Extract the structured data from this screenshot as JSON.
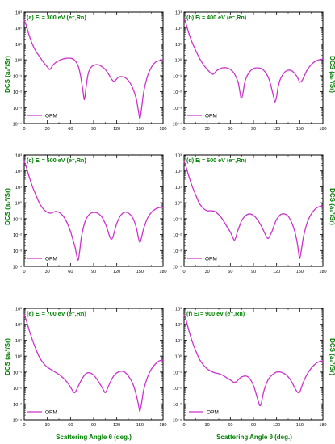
{
  "figure": {
    "ylabel": "DCS (a₀²/Sr)",
    "xlabel": "Scattering Angle θ (deg.)",
    "label_color": "#008000",
    "line_color": "#cc33cc",
    "axis_color": "#000000"
  },
  "chart_data": [
    {
      "type": "line",
      "title": "(a) Eᵢ = 300 eV (e⁻,Rn)",
      "legend": "OPM",
      "legend_position": "bottom-left",
      "xlim": [
        0,
        180
      ],
      "ylim_log10": [
        -4,
        3
      ],
      "xticks": [
        "0",
        "30",
        "60",
        "90",
        "120",
        "150",
        "180"
      ],
      "yticks": [
        "10⁻⁴",
        "10⁻³",
        "10⁻²",
        "10⁻¹",
        "10⁰",
        "10¹",
        "10²",
        "10³"
      ],
      "series": [
        {
          "x": [
            0,
            3,
            6,
            10,
            15,
            20,
            25,
            30,
            33,
            35,
            37,
            40,
            45,
            50,
            55,
            60,
            65,
            70,
            73,
            76,
            78,
            80,
            82,
            84,
            87,
            90,
            95,
            100,
            105,
            110,
            113,
            116,
            118,
            120,
            122,
            125,
            130,
            135,
            140,
            145,
            148,
            150,
            152,
            155,
            160,
            165,
            170,
            175,
            180
          ],
          "y": [
            2.5,
            2.1,
            1.6,
            1.05,
            0.55,
            0.2,
            -0.15,
            -0.45,
            -0.6,
            -0.5,
            -0.35,
            -0.2,
            -0.05,
            0.05,
            0.1,
            0.1,
            0.0,
            -0.4,
            -1.0,
            -1.9,
            -2.5,
            -1.8,
            -1.1,
            -0.7,
            -0.45,
            -0.35,
            -0.3,
            -0.4,
            -0.6,
            -0.95,
            -1.2,
            -1.35,
            -1.3,
            -1.2,
            -1.1,
            -1.05,
            -1.1,
            -1.3,
            -1.7,
            -2.4,
            -3.2,
            -3.7,
            -3.1,
            -2.0,
            -1.0,
            -0.45,
            -0.15,
            -0.05,
            0.0
          ]
        }
      ]
    },
    {
      "type": "line",
      "title": "(b) Eᵢ = 400 eV (e⁻,Rn)",
      "legend": "OPM",
      "legend_position": "bottom-left",
      "xlim": [
        0,
        180
      ],
      "ylim_log10": [
        -4,
        3
      ],
      "xticks": [
        "0",
        "30",
        "60",
        "90",
        "120",
        "150",
        "180"
      ],
      "yticks": [
        "10⁻⁴",
        "10⁻³",
        "10⁻²",
        "10⁻¹",
        "10⁰",
        "10¹",
        "10²",
        "10³"
      ],
      "series": [
        {
          "x": [
            0,
            3,
            6,
            10,
            15,
            20,
            25,
            30,
            35,
            38,
            40,
            43,
            47,
            50,
            55,
            60,
            65,
            70,
            72,
            74,
            76,
            78,
            80,
            85,
            90,
            95,
            100,
            105,
            110,
            113,
            116,
            118,
            120,
            122,
            125,
            130,
            135,
            140,
            145,
            148,
            150,
            153,
            156,
            160,
            165,
            170,
            175,
            180
          ],
          "y": [
            2.6,
            2.2,
            1.7,
            1.15,
            0.6,
            0.1,
            -0.3,
            -0.6,
            -0.85,
            -0.9,
            -0.8,
            -0.65,
            -0.55,
            -0.5,
            -0.5,
            -0.6,
            -0.85,
            -1.4,
            -1.9,
            -2.4,
            -2.2,
            -1.6,
            -1.2,
            -0.75,
            -0.55,
            -0.5,
            -0.55,
            -0.75,
            -1.2,
            -1.7,
            -2.3,
            -2.65,
            -2.3,
            -1.7,
            -1.2,
            -0.8,
            -0.65,
            -0.7,
            -0.95,
            -1.2,
            -1.4,
            -1.3,
            -1.0,
            -0.6,
            -0.3,
            -0.1,
            0.0,
            0.05
          ]
        }
      ]
    },
    {
      "type": "line",
      "title": "(c) Eᵢ = 500 eV (e⁻,Rn)",
      "legend": "OPM",
      "legend_position": "bottom-left",
      "xlim": [
        0,
        180
      ],
      "ylim_log10": [
        -4,
        3
      ],
      "xticks": [
        "0",
        "30",
        "60",
        "90",
        "120",
        "150",
        "180"
      ],
      "yticks": [
        "10⁻⁴",
        "10⁻³",
        "10⁻²",
        "10⁻¹",
        "10⁰",
        "10¹",
        "10²",
        "10³"
      ],
      "series": [
        {
          "x": [
            0,
            3,
            6,
            10,
            15,
            20,
            25,
            30,
            35,
            40,
            45,
            50,
            55,
            60,
            63,
            66,
            68,
            70,
            72,
            74,
            77,
            80,
            85,
            90,
            95,
            100,
            105,
            108,
            111,
            113,
            115,
            117,
            120,
            125,
            130,
            135,
            140,
            143,
            146,
            148,
            150,
            152,
            155,
            160,
            165,
            170,
            175,
            180
          ],
          "y": [
            2.6,
            2.2,
            1.7,
            1.1,
            0.5,
            -0.05,
            -0.4,
            -0.6,
            -0.65,
            -0.55,
            -0.6,
            -0.8,
            -1.2,
            -1.8,
            -2.3,
            -2.8,
            -3.3,
            -3.6,
            -3.0,
            -2.2,
            -1.5,
            -1.05,
            -0.7,
            -0.6,
            -0.65,
            -0.85,
            -1.3,
            -1.7,
            -2.15,
            -2.3,
            -2.15,
            -1.8,
            -1.3,
            -0.8,
            -0.6,
            -0.65,
            -0.9,
            -1.2,
            -1.7,
            -2.2,
            -2.5,
            -2.2,
            -1.6,
            -0.95,
            -0.6,
            -0.4,
            -0.3,
            -0.3
          ]
        }
      ]
    },
    {
      "type": "line",
      "title": "(d) Eᵢ = 600 eV (e⁻,Rn)",
      "legend": "OPM",
      "legend_position": "bottom-left",
      "xlim": [
        0,
        180
      ],
      "ylim_log10": [
        -4,
        3
      ],
      "xticks": [
        "0",
        "30",
        "60",
        "90",
        "120",
        "150",
        "180"
      ],
      "yticks": [
        "10⁻⁴",
        "10⁻³",
        "10⁻²",
        "10⁻¹",
        "10⁰",
        "10¹",
        "10²",
        "10³"
      ],
      "series": [
        {
          "x": [
            0,
            3,
            6,
            10,
            15,
            20,
            25,
            30,
            35,
            40,
            45,
            50,
            55,
            60,
            63,
            65,
            67,
            69,
            72,
            75,
            80,
            85,
            90,
            95,
            100,
            104,
            107,
            109,
            111,
            114,
            117,
            120,
            125,
            130,
            135,
            140,
            144,
            147,
            149,
            150,
            152,
            155,
            160,
            165,
            170,
            175,
            180
          ],
          "y": [
            2.6,
            2.2,
            1.7,
            1.1,
            0.5,
            -0.05,
            -0.35,
            -0.5,
            -0.5,
            -0.55,
            -0.75,
            -1.05,
            -1.45,
            -1.85,
            -2.15,
            -2.35,
            -2.2,
            -1.85,
            -1.45,
            -1.1,
            -0.8,
            -0.7,
            -0.8,
            -1.05,
            -1.45,
            -1.85,
            -2.15,
            -2.25,
            -2.1,
            -1.8,
            -1.4,
            -1.05,
            -0.75,
            -0.7,
            -0.85,
            -1.3,
            -1.9,
            -2.6,
            -3.3,
            -3.5,
            -3.0,
            -2.1,
            -1.2,
            -0.7,
            -0.4,
            -0.25,
            -0.2
          ]
        }
      ]
    },
    {
      "type": "line",
      "title": "(e) Eᵢ = 700 eV (e⁻,Rn)",
      "legend": "OPM",
      "legend_position": "bottom-left",
      "xlim": [
        0,
        180
      ],
      "ylim_log10": [
        -4,
        3
      ],
      "xticks": [
        "0",
        "30",
        "60",
        "90",
        "120",
        "150",
        "180"
      ],
      "yticks": [
        "10⁻⁴",
        "10⁻³",
        "10⁻²",
        "10⁻¹",
        "10⁰",
        "10¹",
        "10²",
        "10³"
      ],
      "series": [
        {
          "x": [
            0,
            3,
            6,
            10,
            15,
            20,
            25,
            30,
            35,
            40,
            45,
            50,
            55,
            60,
            63,
            65,
            67,
            70,
            73,
            76,
            80,
            85,
            90,
            95,
            100,
            103,
            105,
            107,
            110,
            113,
            116,
            120,
            125,
            130,
            135,
            140,
            144,
            147,
            149,
            150,
            152,
            155,
            160,
            165,
            170,
            175,
            180
          ],
          "y": [
            2.6,
            2.2,
            1.7,
            1.1,
            0.45,
            -0.1,
            -0.45,
            -0.7,
            -0.85,
            -1.0,
            -1.15,
            -1.35,
            -1.6,
            -1.95,
            -2.2,
            -2.3,
            -2.2,
            -1.9,
            -1.6,
            -1.35,
            -1.1,
            -1.05,
            -1.2,
            -1.5,
            -1.9,
            -2.15,
            -2.3,
            -2.15,
            -1.8,
            -1.5,
            -1.25,
            -1.05,
            -0.95,
            -1.0,
            -1.25,
            -1.65,
            -2.2,
            -2.8,
            -3.3,
            -3.45,
            -3.0,
            -2.1,
            -1.3,
            -0.8,
            -0.5,
            -0.3,
            -0.25
          ]
        }
      ]
    },
    {
      "type": "line",
      "title": "(f) Eᵢ = 900 eV (e⁻,Rn)",
      "legend": "OPM",
      "legend_position": "bottom-right",
      "xlim": [
        0,
        180
      ],
      "ylim_log10": [
        -4,
        3
      ],
      "xticks": [
        "0",
        "30",
        "60",
        "90",
        "120",
        "150",
        "180"
      ],
      "yticks": [
        "10⁻⁴",
        "10⁻³",
        "10⁻²",
        "10⁻¹",
        "10⁰",
        "10¹",
        "10²",
        "10³"
      ],
      "series": [
        {
          "x": [
            0,
            3,
            6,
            10,
            15,
            20,
            25,
            30,
            35,
            40,
            45,
            50,
            55,
            60,
            63,
            65,
            68,
            72,
            75,
            80,
            85,
            90,
            93,
            96,
            98,
            100,
            102,
            104,
            107,
            110,
            115,
            120,
            125,
            130,
            135,
            140,
            143,
            146,
            148,
            150,
            152,
            155,
            160,
            165,
            170,
            175,
            180
          ],
          "y": [
            2.6,
            2.2,
            1.65,
            1.0,
            0.35,
            -0.2,
            -0.55,
            -0.8,
            -0.95,
            -1.05,
            -1.1,
            -1.2,
            -1.35,
            -1.5,
            -1.6,
            -1.65,
            -1.6,
            -1.4,
            -1.3,
            -1.25,
            -1.4,
            -1.85,
            -2.3,
            -2.8,
            -3.1,
            -3.0,
            -2.5,
            -2.1,
            -1.7,
            -1.4,
            -1.15,
            -1.0,
            -1.0,
            -1.1,
            -1.3,
            -1.65,
            -1.95,
            -2.2,
            -2.3,
            -2.25,
            -2.0,
            -1.6,
            -1.1,
            -0.75,
            -0.5,
            -0.35,
            -0.3
          ]
        }
      ]
    }
  ]
}
